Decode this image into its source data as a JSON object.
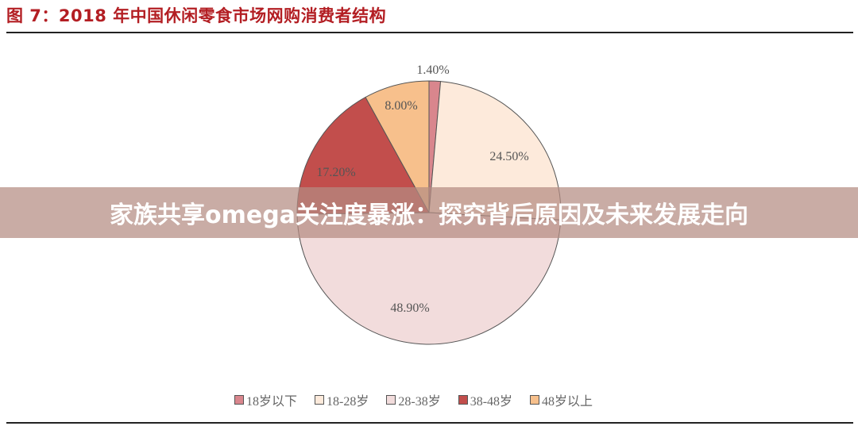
{
  "figure": {
    "title": "图 7：2018 年中国休闲零食市场网购消费者结构"
  },
  "banner": {
    "text": "家族共享omega关注度暴涨：探究背后原因及未来发展走向"
  },
  "legend": {
    "items": [
      {
        "label": "18岁以下",
        "color": "#d9868d"
      },
      {
        "label": "18-28岁",
        "color": "#fdeadb"
      },
      {
        "label": "28-38岁",
        "color": "#f2dcdc"
      },
      {
        "label": "38-48岁",
        "color": "#c24e4c"
      },
      {
        "label": "48岁以上",
        "color": "#f7c08c"
      }
    ]
  },
  "labels": {
    "s0": "1.40%",
    "s1": "24.50%",
    "s2": "48.90%",
    "s3": "17.20%",
    "s4": "8.00%"
  },
  "chart_data": {
    "type": "pie",
    "title": "图 7：2018 年中国休闲零食市场网购消费者结构",
    "categories": [
      "18岁以下",
      "18-28岁",
      "28-38岁",
      "38-48岁",
      "48岁以上"
    ],
    "values": [
      1.4,
      24.5,
      48.9,
      17.2,
      8.0
    ],
    "unit": "%",
    "colors": [
      "#d9868d",
      "#fdeadb",
      "#f2dcdc",
      "#c24e4c",
      "#f7c08c"
    ],
    "start_angle": "12 o'clock, clockwise",
    "legend_position": "bottom",
    "data_labels": [
      "1.40%",
      "24.50%",
      "48.90%",
      "17.20%",
      "8.00%"
    ]
  }
}
